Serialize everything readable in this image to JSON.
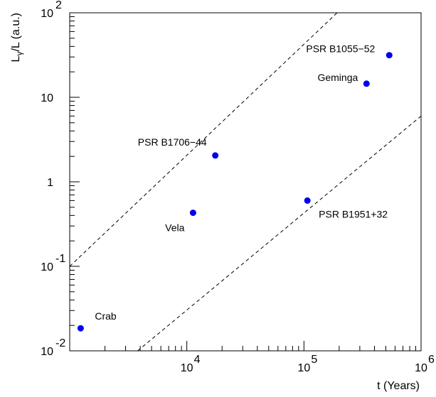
{
  "chart_data": {
    "type": "scatter",
    "title": "",
    "xlabel": "t (Years)",
    "ylabel": "Lγ/L (a.u.)",
    "xscale": "log",
    "yscale": "log",
    "xlim": [
      1000,
      1000000
    ],
    "ylim": [
      0.01,
      100
    ],
    "grid": false,
    "legend": "none",
    "x_ticks": [
      {
        "value": 10000,
        "base": "10",
        "exp": "4"
      },
      {
        "value": 100000,
        "base": "10",
        "exp": "5"
      },
      {
        "value": 1000000,
        "base": "10",
        "exp": "6"
      }
    ],
    "y_ticks": [
      {
        "value": 100,
        "base": "10",
        "exp": "2"
      },
      {
        "value": 10,
        "base": "10",
        "exp": ""
      },
      {
        "value": 1,
        "base": "1",
        "exp": ""
      },
      {
        "value": 0.1,
        "base": "10",
        "exp": "-1"
      },
      {
        "value": 0.01,
        "base": "10",
        "exp": "-2"
      }
    ],
    "points": [
      {
        "name": "Crab",
        "x": 1240,
        "y": 0.0185
      },
      {
        "name": "Vela",
        "x": 11300,
        "y": 0.43
      },
      {
        "name": "PSR B1706−44",
        "x": 17500,
        "y": 2.05
      },
      {
        "name": "PSR B1951+32",
        "x": 107000,
        "y": 0.6
      },
      {
        "name": "Geminga",
        "x": 342000,
        "y": 14.5
      },
      {
        "name": "PSR B1055−52",
        "x": 535000,
        "y": 31.5
      }
    ],
    "reference_lines": [
      {
        "style": "dashed",
        "from": [
          1000,
          0.1
        ],
        "to": [
          192000,
          100
        ]
      },
      {
        "style": "dashed",
        "from": [
          3800,
          0.01
        ],
        "to": [
          1000000,
          6.0
        ]
      }
    ],
    "colors": {
      "points": "#0000ee",
      "axes": "#000000"
    }
  }
}
